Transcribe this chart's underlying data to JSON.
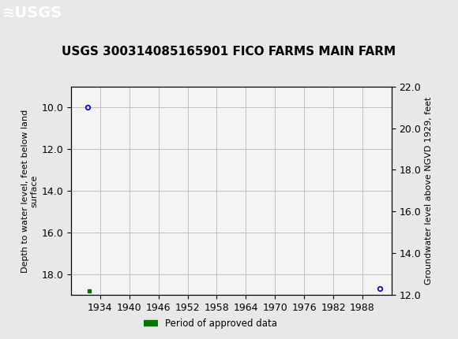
{
  "title": "USGS 300314085165901 FICO FARMS MAIN FARM",
  "ylabel_left": "Depth to water level, feet below land\nsurface",
  "ylabel_right": "Groundwater level above NGVD 1929, feet",
  "xlim": [
    1928,
    1994
  ],
  "ylim_left": [
    9.0,
    19.0
  ],
  "ylim_right": [
    12.0,
    22.0
  ],
  "xticks": [
    1934,
    1940,
    1946,
    1952,
    1958,
    1964,
    1970,
    1976,
    1982,
    1988
  ],
  "yticks_left": [
    10.0,
    12.0,
    14.0,
    16.0,
    18.0
  ],
  "yticks_right": [
    12.0,
    14.0,
    16.0,
    18.0,
    20.0,
    22.0
  ],
  "data_x": [
    1931.5,
    1991.5
  ],
  "data_y": [
    10.0,
    18.7
  ],
  "point_color": "#0000cc",
  "point_marker": "o",
  "point_size": 4,
  "legend_label": "Period of approved data",
  "legend_color": "#007700",
  "header_color": "#1a7a3c",
  "bg_color": "#e8e8e8",
  "plot_bg_color": "#f4f4f4",
  "grid_color": "#c0c0c0",
  "axis_color": "#000000",
  "title_fontsize": 11,
  "tick_fontsize": 9,
  "label_fontsize": 8
}
